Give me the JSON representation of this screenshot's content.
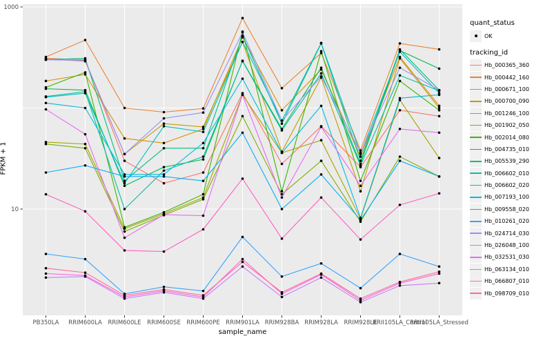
{
  "figure": {
    "bg": "#FFFFFF",
    "panel_bg": "#EBEBEB",
    "grid_color": "#FFFFFF",
    "tick_color": "#333333",
    "tick_label_color": "#4D4D4D",
    "point_color": "#000000"
  },
  "axes": {
    "x_title": "sample_name",
    "y_title": "FPKM + 1",
    "y_scale": "log10",
    "y_tick_labels": [
      "10",
      "1000"
    ],
    "y_tick_values": [
      10,
      1000
    ],
    "y_grid_values": [
      10,
      100,
      1000
    ]
  },
  "legend": {
    "quant_title": "quant_status",
    "quant_items": [
      {
        "label": "OK",
        "marker": "point-icon",
        "color": "#000000"
      }
    ],
    "tracking_title": "tracking_id"
  },
  "chart_data": {
    "type": "line",
    "title": "",
    "xlabel": "sample_name",
    "ylabel": "FPKM + 1",
    "yscale": "log10",
    "ylim": [
      1,
      1100
    ],
    "grid": true,
    "legend_position": "right",
    "marker": "black point on every vertex",
    "categories": [
      "PB350LA",
      "RRIM600LA",
      "RRIM600LE",
      "RRIM600SE",
      "RRIM600PE",
      "RRIM901LA",
      "RRIM928BA",
      "RRIM928LA",
      "RRIM928LE",
      "RRII105LA_Control",
      "RRII105LA_Stressed"
    ],
    "series": [
      {
        "name": "Hb_000365_360",
        "color": "#F8766D",
        "values": [
          310,
          300,
          30,
          18,
          23,
          140,
          28,
          66,
          26,
          95,
          83
        ]
      },
      {
        "name": "Hb_000442_160",
        "color": "#EA8331",
        "values": [
          320,
          470,
          100,
          91,
          99,
          775,
          157,
          350,
          38,
          435,
          380
        ]
      },
      {
        "name": "Hb_000671_100",
        "color": "#D89000",
        "values": [
          185,
          215,
          50,
          45,
          62,
          500,
          95,
          240,
          33,
          320,
          105
        ]
      },
      {
        "name": "Hb_000700_090",
        "color": "#C09B00",
        "values": [
          305,
          290,
          35,
          70,
          65,
          450,
          37,
          200,
          15,
          310,
          100
        ]
      },
      {
        "name": "Hb_001246_100",
        "color": "#A3A500",
        "values": [
          46,
          44,
          6.4,
          9,
          13,
          135,
          36,
          48,
          8,
          120,
          32
        ]
      },
      {
        "name": "Hb_001902_050",
        "color": "#7CAE00",
        "values": [
          44,
          40,
          6.0,
          8.7,
          12.5,
          83,
          14,
          30,
          7.5,
          33,
          21
        ]
      },
      {
        "name": "Hb_002014_080",
        "color": "#39B600",
        "values": [
          160,
          225,
          6.6,
          9.3,
          14,
          570,
          15,
          365,
          19,
          185,
          95
        ]
      },
      {
        "name": "Hb_004735_010",
        "color": "#00BB4E",
        "values": [
          155,
          150,
          17,
          26,
          31,
          293,
          62,
          250,
          28,
          370,
          245
        ]
      },
      {
        "name": "Hb_005539_290",
        "color": "#00BF7D",
        "values": [
          300,
          310,
          19,
          40,
          40,
          520,
          70,
          435,
          30,
          380,
          150
        ]
      },
      {
        "name": "Hb_006602_010",
        "color": "#00C1A3",
        "values": [
          130,
          145,
          10,
          24,
          33,
          290,
          60,
          220,
          27,
          210,
          148
        ]
      },
      {
        "name": "Hb_006602_020",
        "color": "#00BFC4",
        "values": [
          128,
          140,
          18,
          66,
          58,
          450,
          75,
          440,
          35,
          360,
          140
        ]
      },
      {
        "name": "Hb_007193_100",
        "color": "#00BAE0",
        "values": [
          112,
          100,
          22,
          22,
          45,
          195,
          36,
          105,
          8.2,
          125,
          135
        ]
      },
      {
        "name": "Hb_009558_020",
        "color": "#00B0F6",
        "values": [
          23,
          27,
          21,
          21,
          19,
          57,
          10,
          22,
          7.8,
          30,
          21
        ]
      },
      {
        "name": "Hb_010261_020",
        "color": "#35A2FF",
        "values": [
          3.6,
          3.2,
          1.45,
          1.7,
          1.55,
          5.3,
          2.15,
          2.9,
          1.65,
          3.6,
          2.7
        ]
      },
      {
        "name": "Hb_024714_030",
        "color": "#9590FF",
        "values": [
          300,
          295,
          35,
          79,
          90,
          560,
          75,
          205,
          36,
          250,
          150
        ]
      },
      {
        "name": "Hb_026048_100",
        "color": "#C77CFF",
        "values": [
          2.1,
          2.15,
          1.3,
          1.5,
          1.3,
          2.7,
          1.35,
          2.1,
          1.2,
          1.75,
          1.85
        ]
      },
      {
        "name": "Hb_032531_030",
        "color": "#E76BF3",
        "values": [
          97,
          55,
          5.2,
          8.8,
          8.6,
          135,
          13,
          65,
          17,
          62,
          57
        ]
      },
      {
        "name": "Hb_063134_010",
        "color": "#FA62DB",
        "values": [
          2.3,
          2.2,
          1.35,
          1.55,
          1.35,
          3.2,
          1.45,
          2.25,
          1.25,
          1.85,
          2.3
        ]
      },
      {
        "name": "Hb_066807_010",
        "color": "#FF61C3",
        "values": [
          14,
          9.5,
          3.9,
          3.8,
          6.3,
          20,
          5.1,
          13,
          5.0,
          11,
          14.3
        ]
      },
      {
        "name": "Hb_098709_010",
        "color": "#FF6A98",
        "values": [
          2.6,
          2.35,
          1.4,
          1.6,
          1.4,
          3.0,
          1.5,
          2.3,
          1.3,
          1.9,
          2.4
        ]
      }
    ]
  }
}
